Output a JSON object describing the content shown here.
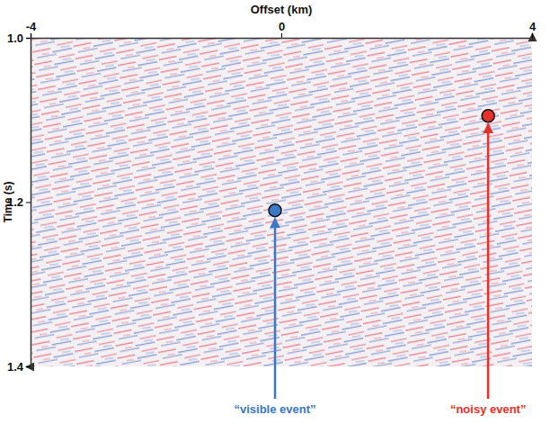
{
  "chart_data": {
    "type": "scatter",
    "x_label": "Offset (km)",
    "y_label": "Time (s)",
    "xlim": [
      -4,
      4
    ],
    "xticks": [
      -4,
      0,
      4
    ],
    "ylim": [
      1.0,
      1.4
    ],
    "yticks": [
      {
        "value": 1.0,
        "label": "1.0"
      },
      {
        "value": 1.2,
        "label": "1.2"
      },
      {
        "value": 1.4,
        "label": "1.4"
      }
    ],
    "annotations": [
      {
        "text": "“visible event”",
        "x": -0.1,
        "y": 1.21,
        "color": "#3a78c8"
      },
      {
        "text": "“noisy event”",
        "x": 3.3,
        "y": 1.095,
        "color": "#e8302a"
      }
    ]
  }
}
